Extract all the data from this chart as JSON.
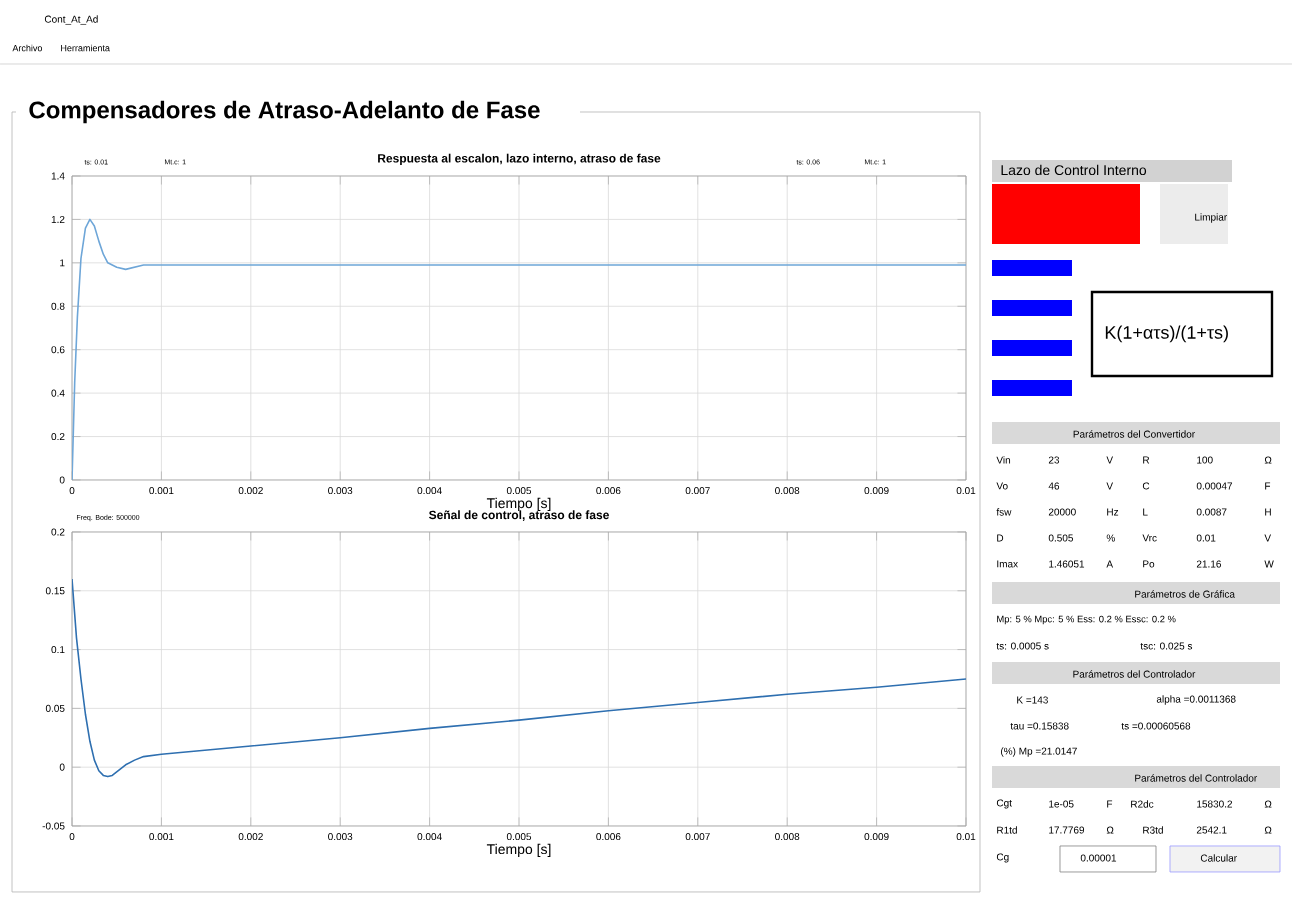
{
  "chart_data": [
    {
      "type": "line",
      "title": "Respuesta al escalon, lazo interno, atraso de fase",
      "xlabel": "Tiempo  [s]",
      "xlim": [
        0,
        0.01
      ],
      "ylim": [
        0,
        1.4
      ],
      "xticks": [
        0,
        0.001,
        0.002,
        0.003,
        0.004,
        0.005,
        0.006,
        0.007,
        0.008,
        0.009,
        0.01
      ],
      "yticks": [
        0,
        0.2,
        0.4,
        0.6,
        0.8,
        1,
        1.2,
        1.4
      ],
      "grid": true,
      "annotations": [
        "ts: 0.01",
        "Mt.c: 1",
        "ts: 0.06",
        "Mt.c: 1"
      ],
      "series": [
        {
          "color": "#6ea6d8",
          "x": [
            0,
            3e-05,
            6e-05,
            0.0001,
            0.00015,
            0.0002,
            0.00025,
            0.0003,
            0.00035,
            0.0004,
            0.0005,
            0.0006,
            0.0007,
            0.0008,
            0.001,
            0.002,
            0.005,
            0.01
          ],
          "values": [
            0,
            0.45,
            0.75,
            1.02,
            1.16,
            1.2,
            1.17,
            1.1,
            1.04,
            1.0,
            0.98,
            0.97,
            0.98,
            0.99,
            0.99,
            0.99,
            0.99,
            0.99
          ]
        }
      ]
    },
    {
      "type": "line",
      "title": "Señal de control, atraso de fase",
      "xlabel": "Tiempo  [s]",
      "xlim": [
        0,
        0.01
      ],
      "ylim": [
        -0.05,
        0.2
      ],
      "xticks": [
        0,
        0.001,
        0.002,
        0.003,
        0.004,
        0.005,
        0.006,
        0.007,
        0.008,
        0.009,
        0.01
      ],
      "yticks": [
        -0.05,
        0,
        0.05,
        0.1,
        0.15,
        0.2
      ],
      "grid": true,
      "annotations": [
        "Freq. Bode: 500000"
      ],
      "series": [
        {
          "color": "#2e6fb0",
          "x": [
            0,
            5e-05,
            0.0001,
            0.00015,
            0.0002,
            0.00025,
            0.0003,
            0.00035,
            0.0004,
            0.00045,
            0.0005,
            0.0006,
            0.0007,
            0.0008,
            0.001,
            0.002,
            0.003,
            0.004,
            0.005,
            0.006,
            0.007,
            0.008,
            0.009,
            0.01
          ],
          "values": [
            0.16,
            0.11,
            0.075,
            0.045,
            0.022,
            0.006,
            -0.003,
            -0.007,
            -0.008,
            -0.007,
            -0.004,
            0.002,
            0.006,
            0.009,
            0.011,
            0.018,
            0.025,
            0.033,
            0.04,
            0.048,
            0.055,
            0.062,
            0.068,
            0.075
          ]
        }
      ]
    },
    {
      "type": "other",
      "annotations": [
        "Cont_At_Ad",
        "Archivo",
        "Herramienta",
        "Compensadores de Atraso-Adelanto de Fase",
        "Lazo de Control Interno",
        "Limpiar",
        "K(1+ατs)/(1+τs)",
        "Parámetros del Convertidor",
        "Vin",
        "23",
        "V",
        "R",
        "100",
        "Ω",
        "Vo",
        "46",
        "V",
        "C",
        "0.00047",
        "F",
        "fsw",
        "20000",
        "Hz",
        "L",
        "0.0087",
        "H",
        "D",
        "0.505",
        "%",
        "Vrc",
        "0.01",
        "V",
        "Imax",
        "1.46051",
        "A",
        "Po",
        "21.16",
        "W",
        "Parámetros de Gráfica",
        "Mp: 5 % Mpc: 5 % Ess: 0.2 % Essc: 0.2 %",
        "ts: 0.0005 s",
        "tsc: 0.025 s",
        "Parámetros del Controlador",
        "K =143",
        "alpha =0.0011368",
        "tau =0.15838",
        "ts =0.00060568",
        "(%) Mp =21.0147",
        "Parámetros del Controlador",
        "Cgt",
        "1e-05",
        "F",
        "R2dc",
        "15830.2",
        "Ω",
        "R1td",
        "17.7769",
        "Ω",
        "R3td",
        "2542.1",
        "Ω",
        "Cg",
        "0.00001",
        "Calcular"
      ]
    }
  ]
}
